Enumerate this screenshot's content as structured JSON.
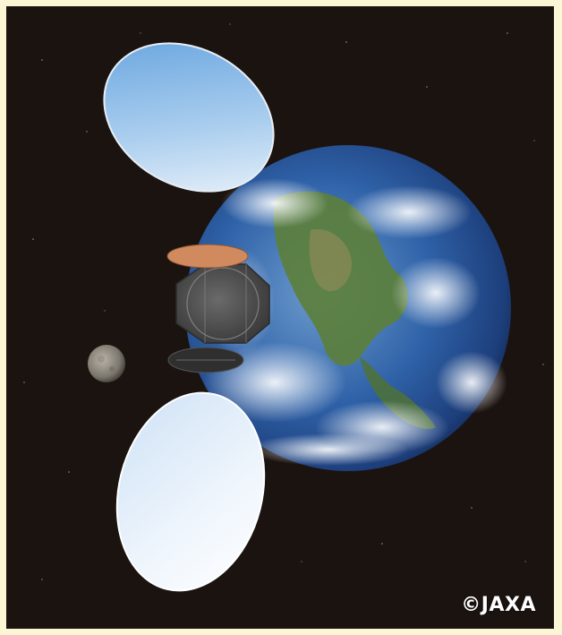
{
  "image": {
    "credit": "©JAXA"
  },
  "scene": {
    "objects": [
      "earth",
      "moon",
      "satellite-upper-reflector",
      "satellite-lower-reflector",
      "satellite-body"
    ]
  },
  "colors": {
    "frame": "#fdf6d4",
    "space": "#1a1210",
    "ocean": "#2a5fa8",
    "land": "#4a7a3a",
    "reflector_upper": "#6fa9e0",
    "reflector_lower": "#dbe9f7",
    "antenna_top": "#d08a5e"
  }
}
